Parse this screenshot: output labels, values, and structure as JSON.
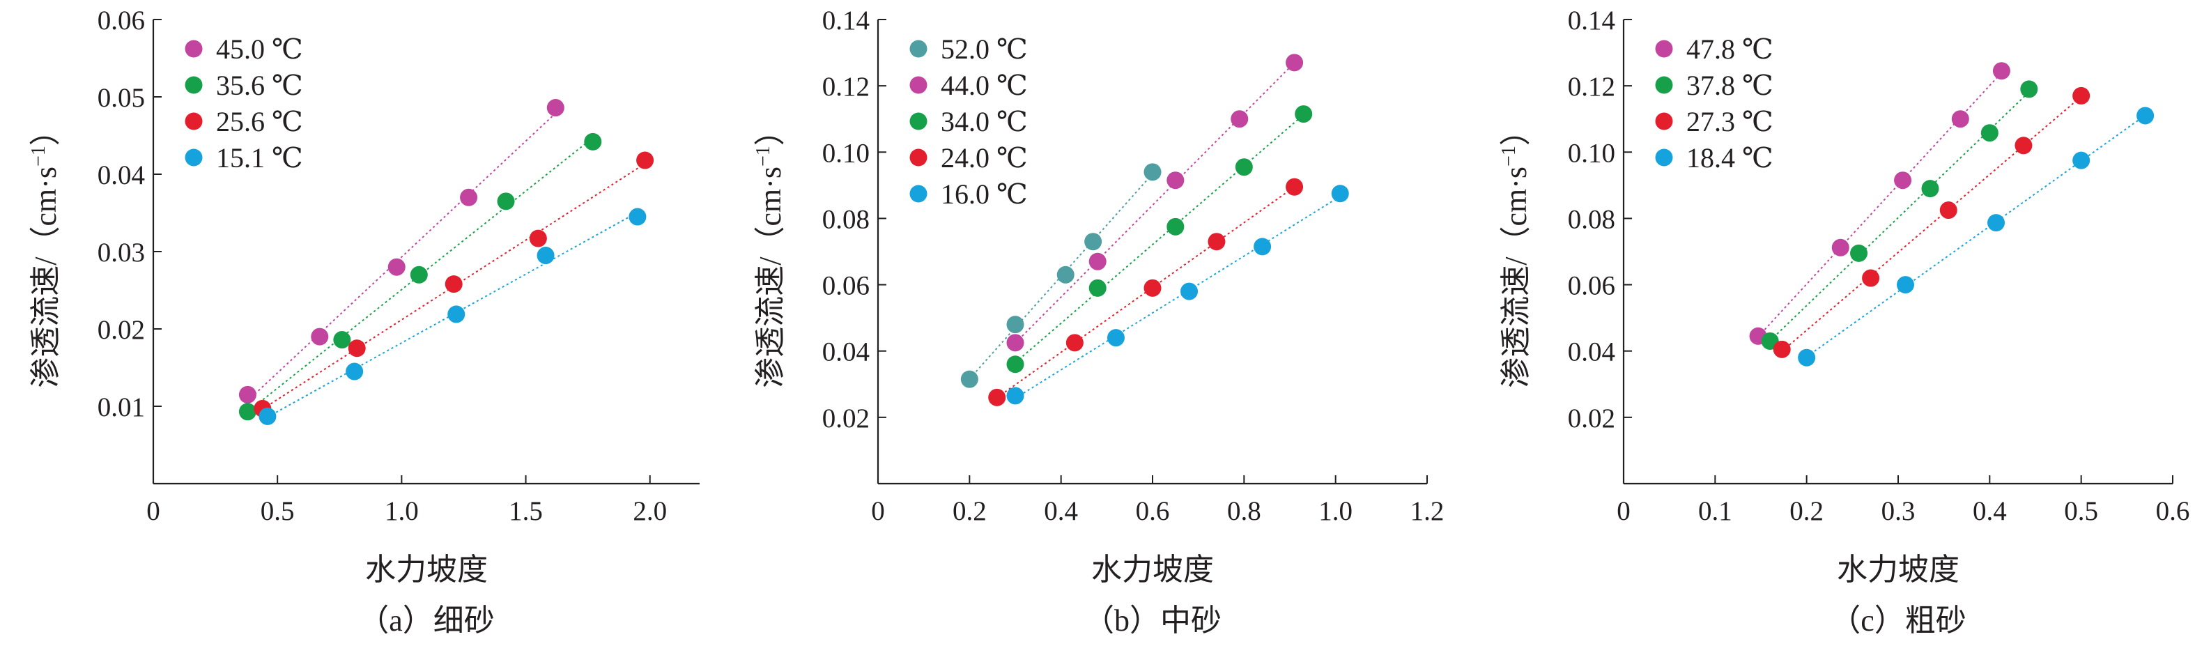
{
  "figure": {
    "xlabel": "水力坡度",
    "ylabel_main": "渗透流速/",
    "ylabel_unit_open": "（",
    "ylabel_unit_a": "cm·s",
    "ylabel_unit_sup": "−1",
    "ylabel_unit_close": "）"
  },
  "chart_data": [
    {
      "type": "scatter",
      "caption": "（a）细砂",
      "xlabel": "水力坡度",
      "ylabel": "渗透流速/（cm·s⁻¹）",
      "xlim": [
        0,
        2.2
      ],
      "ylim": [
        0,
        0.06
      ],
      "xticks": [
        0,
        0.5,
        1.0,
        1.5,
        2.0
      ],
      "xtick_labels": [
        "0",
        "0.5",
        "1.0",
        "1.5",
        "2.0"
      ],
      "yticks": [
        0.01,
        0.02,
        0.03,
        0.04,
        0.05,
        0.06
      ],
      "ytick_labels": [
        "0.01",
        "0.02",
        "0.03",
        "0.04",
        "0.05",
        "0.06"
      ],
      "legend_position": "top-left",
      "series": [
        {
          "name": "45.0 ℃",
          "color": "#c2449e",
          "x": [
            0.38,
            0.67,
            0.98,
            1.27,
            1.62
          ],
          "y": [
            0.0115,
            0.019,
            0.028,
            0.037,
            0.0486
          ]
        },
        {
          "name": "35.6 ℃",
          "color": "#17a04a",
          "x": [
            0.38,
            0.76,
            1.07,
            1.42,
            1.77
          ],
          "y": [
            0.0093,
            0.0186,
            0.027,
            0.0365,
            0.0442
          ]
        },
        {
          "name": "25.6 ℃",
          "color": "#e31e2d",
          "x": [
            0.44,
            0.82,
            1.21,
            1.55,
            1.98
          ],
          "y": [
            0.0097,
            0.0175,
            0.0258,
            0.0317,
            0.0418
          ]
        },
        {
          "name": "15.1 ℃",
          "color": "#16a3dd",
          "x": [
            0.46,
            0.81,
            1.22,
            1.58,
            1.95
          ],
          "y": [
            0.0087,
            0.0145,
            0.0219,
            0.0295,
            0.0345
          ]
        }
      ]
    },
    {
      "type": "scatter",
      "caption": "（b）中砂",
      "xlabel": "水力坡度",
      "ylabel": "渗透流速/（cm·s⁻¹）",
      "xlim": [
        0,
        1.2
      ],
      "ylim": [
        0,
        0.14
      ],
      "xticks": [
        0,
        0.2,
        0.4,
        0.6,
        0.8,
        1.0,
        1.2
      ],
      "xtick_labels": [
        "0",
        "0.2",
        "0.4",
        "0.6",
        "0.8",
        "1.0",
        "1.2"
      ],
      "yticks": [
        0.02,
        0.04,
        0.06,
        0.08,
        0.1,
        0.12,
        0.14
      ],
      "ytick_labels": [
        "0.02",
        "0.04",
        "0.06",
        "0.08",
        "0.10",
        "0.12",
        "0.14"
      ],
      "legend_position": "top-left",
      "series": [
        {
          "name": "52.0 ℃",
          "color": "#4e9ea2",
          "x": [
            0.2,
            0.3,
            0.41,
            0.47,
            0.6
          ],
          "y": [
            0.0315,
            0.048,
            0.063,
            0.073,
            0.094
          ]
        },
        {
          "name": "44.0 ℃",
          "color": "#c2449e",
          "x": [
            0.3,
            0.48,
            0.65,
            0.79,
            0.91
          ],
          "y": [
            0.0425,
            0.067,
            0.0915,
            0.11,
            0.127
          ]
        },
        {
          "name": "34.0 ℃",
          "color": "#17a04a",
          "x": [
            0.3,
            0.48,
            0.65,
            0.8,
            0.93
          ],
          "y": [
            0.036,
            0.059,
            0.0775,
            0.0955,
            0.1115
          ]
        },
        {
          "name": "24.0 ℃",
          "color": "#e31e2d",
          "x": [
            0.26,
            0.43,
            0.6,
            0.74,
            0.91
          ],
          "y": [
            0.026,
            0.0425,
            0.059,
            0.073,
            0.0895
          ]
        },
        {
          "name": "16.0 ℃",
          "color": "#16a3dd",
          "x": [
            0.3,
            0.52,
            0.68,
            0.84,
            1.01
          ],
          "y": [
            0.0265,
            0.044,
            0.058,
            0.0715,
            0.0875
          ]
        }
      ]
    },
    {
      "type": "scatter",
      "caption": "（c）粗砂",
      "xlabel": "水力坡度",
      "ylabel": "渗透流速/（cm·s⁻¹）",
      "xlim": [
        0,
        0.6
      ],
      "ylim": [
        0,
        0.14
      ],
      "xticks": [
        0,
        0.1,
        0.2,
        0.3,
        0.4,
        0.5,
        0.6
      ],
      "xtick_labels": [
        "0",
        "0.1",
        "0.2",
        "0.3",
        "0.4",
        "0.5",
        "0.6"
      ],
      "yticks": [
        0.02,
        0.04,
        0.06,
        0.08,
        0.1,
        0.12,
        0.14
      ],
      "ytick_labels": [
        "0.02",
        "0.04",
        "0.06",
        "0.08",
        "0.10",
        "0.12",
        "0.14"
      ],
      "legend_position": "top-left",
      "series": [
        {
          "name": "47.8 ℃",
          "color": "#c2449e",
          "x": [
            0.147,
            0.237,
            0.305,
            0.368,
            0.413
          ],
          "y": [
            0.0445,
            0.0712,
            0.0915,
            0.11,
            0.1245
          ]
        },
        {
          "name": "37.8 ℃",
          "color": "#17a04a",
          "x": [
            0.16,
            0.257,
            0.335,
            0.4,
            0.443
          ],
          "y": [
            0.043,
            0.0695,
            0.089,
            0.1058,
            0.119
          ]
        },
        {
          "name": "27.3 ℃",
          "color": "#e31e2d",
          "x": [
            0.173,
            0.27,
            0.355,
            0.437,
            0.5
          ],
          "y": [
            0.0405,
            0.062,
            0.0825,
            0.102,
            0.117
          ]
        },
        {
          "name": "18.4 ℃",
          "color": "#16a3dd",
          "x": [
            0.2,
            0.308,
            0.407,
            0.5,
            0.57
          ],
          "y": [
            0.038,
            0.06,
            0.0787,
            0.0975,
            0.111
          ]
        }
      ]
    }
  ]
}
